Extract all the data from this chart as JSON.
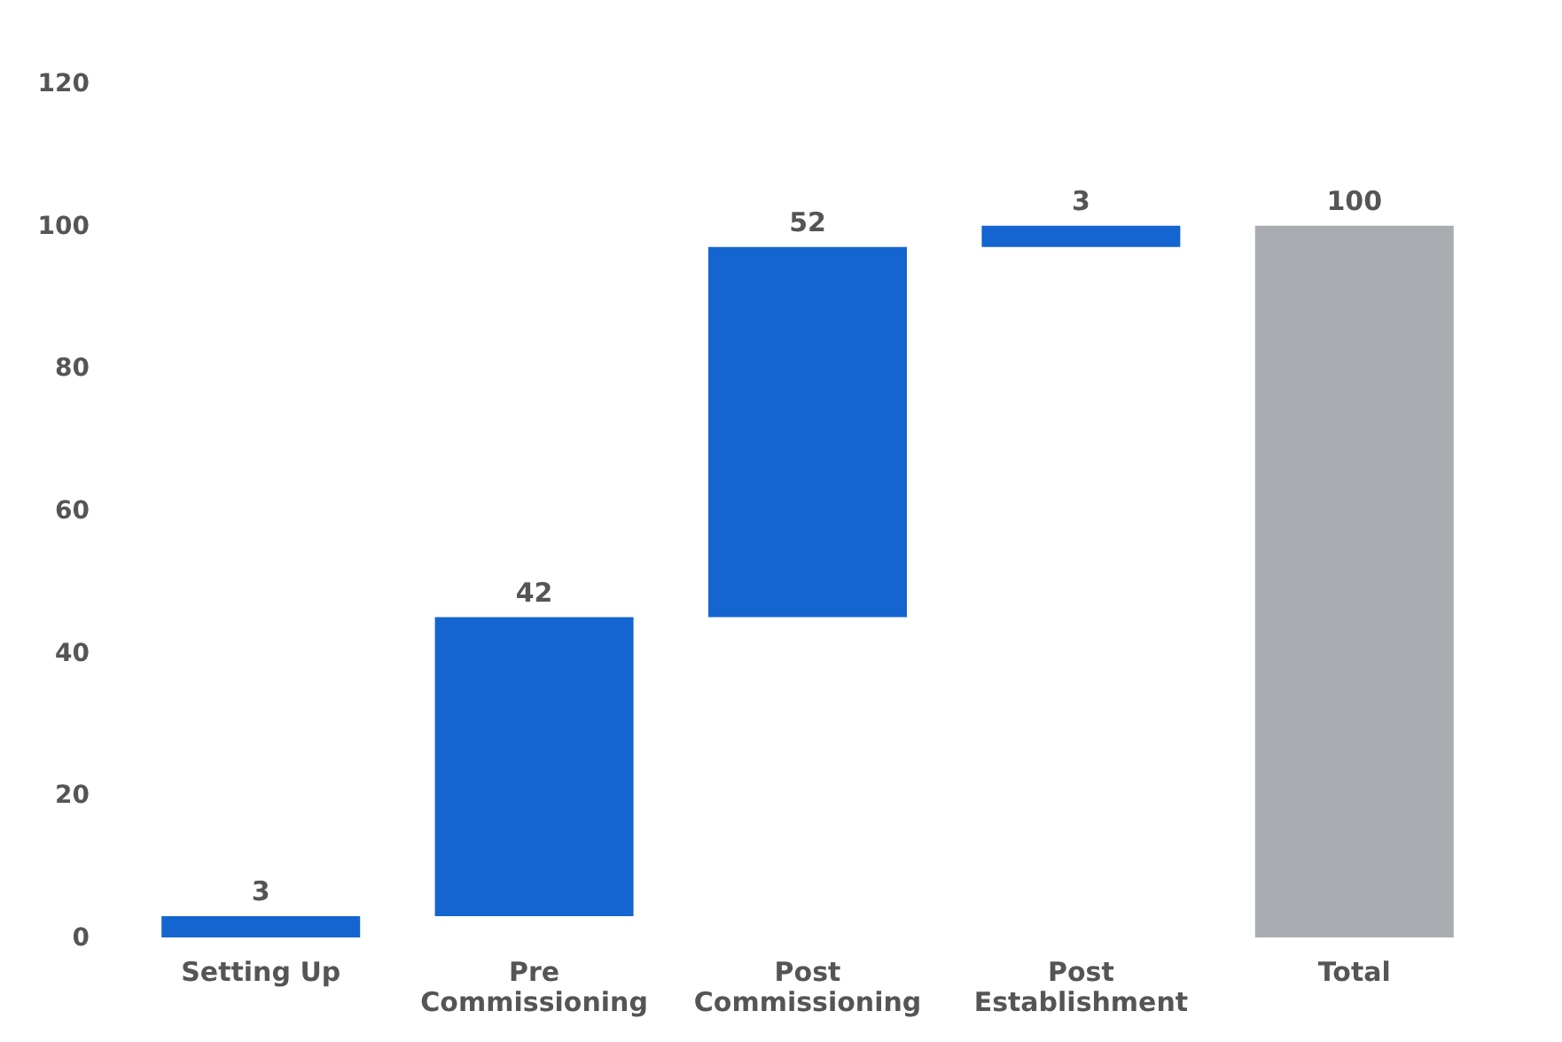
{
  "chart_data": {
    "type": "bar",
    "categories": [
      "Setting Up",
      "Pre Commissioning",
      "Post Commissioning",
      "Post Establishment",
      "Total"
    ],
    "values": [
      3,
      42,
      52,
      3,
      100
    ],
    "base": [
      0,
      3,
      45,
      97,
      0
    ],
    "colors": [
      "#1565d0",
      "#1565d0",
      "#1565d0",
      "#1565d0",
      "#a9adb1"
    ],
    "ylim": [
      0,
      120
    ],
    "yticks": [
      0,
      20,
      40,
      60,
      80,
      100,
      120
    ],
    "data_labels": true,
    "grid": false
  }
}
